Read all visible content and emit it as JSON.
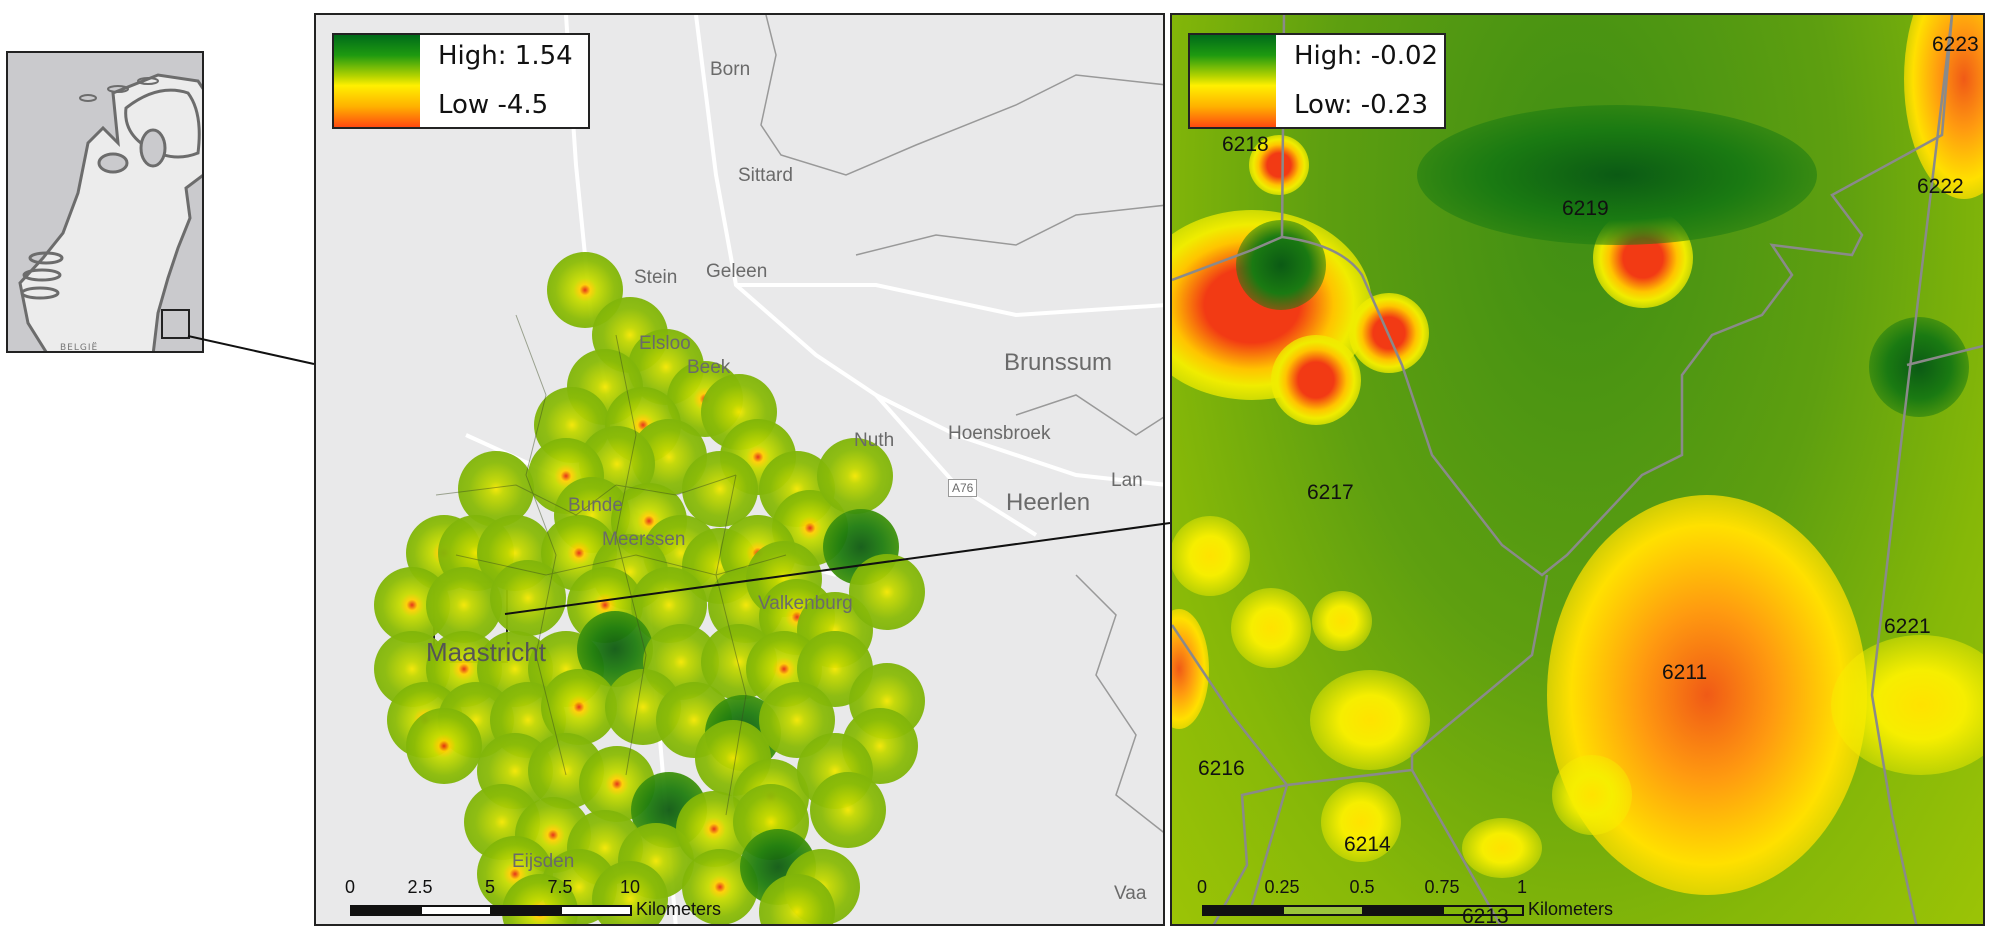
{
  "inset_map": {
    "country_label": "BELGIË"
  },
  "overview_map": {
    "legend": {
      "high": "High: 1.54",
      "low": "Low -4.5"
    },
    "places": [
      {
        "name": "Born"
      },
      {
        "name": "Sittard"
      },
      {
        "name": "Geleen"
      },
      {
        "name": "Stein"
      },
      {
        "name": "Elsloo"
      },
      {
        "name": "Beek"
      },
      {
        "name": "Brunssum"
      },
      {
        "name": "Nuth"
      },
      {
        "name": "Hoensbroek"
      },
      {
        "name": "A76"
      },
      {
        "name": "Heerlen"
      },
      {
        "name": "Lan"
      },
      {
        "name": "Bunde"
      },
      {
        "name": "Meerssen"
      },
      {
        "name": "Valkenburg"
      },
      {
        "name": "Maastricht"
      },
      {
        "name": "Eijsden"
      },
      {
        "name": "Vaa"
      }
    ],
    "scale_bar": {
      "ticks": [
        "0",
        "2.5",
        "5",
        "7.5",
        "10"
      ],
      "unit": "Kilometers"
    }
  },
  "detail_map": {
    "legend": {
      "high": "High: -0.02",
      "low": "Low: -0.23"
    },
    "postcodes": [
      "6223",
      "6218",
      "6222",
      "6219",
      "6217",
      "6221",
      "6211",
      "6216",
      "6214",
      "6213"
    ],
    "scale_bar": {
      "ticks": [
        "0",
        "0.25",
        "0.5",
        "0.75",
        "1"
      ],
      "unit": "Kilometers"
    }
  },
  "colors": {
    "high": "#006b1a",
    "mid": "#fff000",
    "low": "#ff4a10",
    "background": "#e9e9ea",
    "boundary": "#8a8a8a"
  }
}
